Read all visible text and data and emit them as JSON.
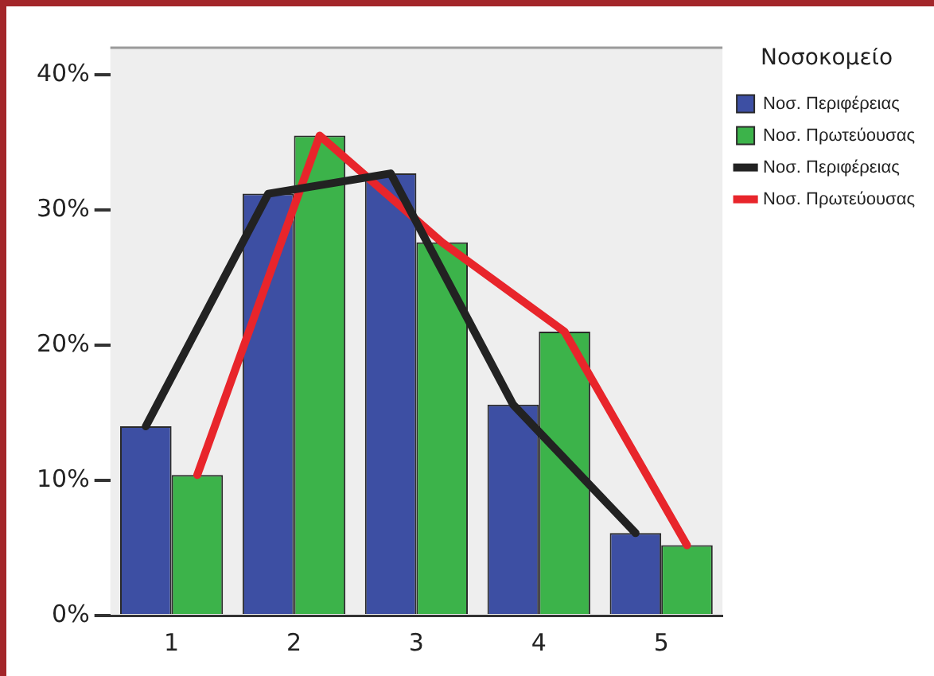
{
  "chart_data": {
    "type": "bar",
    "categories": [
      "1",
      "2",
      "3",
      "4",
      "5"
    ],
    "series": [
      {
        "name": "Νοσ. Περιφέρειας",
        "color": "#3d4fa3",
        "values": [
          14.0,
          31.2,
          32.7,
          15.6,
          6.1
        ]
      },
      {
        "name": "Νοσ. Πρωτεύουσας",
        "color": "#3cb34a",
        "values": [
          10.4,
          35.5,
          27.6,
          21.0,
          5.2
        ]
      },
      {
        "name": "Νοσ. Περιφέρειας",
        "type": "line",
        "color": "#222222",
        "values": [
          14.0,
          31.2,
          32.7,
          15.6,
          6.1
        ]
      },
      {
        "name": "Νοσ. Πρωτεύουσας",
        "type": "line",
        "color": "#e8252b",
        "values": [
          10.4,
          35.5,
          27.6,
          21.0,
          5.2
        ]
      }
    ],
    "legend_title": "Νοσοκομείο",
    "legend": "right",
    "grid": false,
    "marker": "none",
    "line_style": "solid",
    "ylim": [
      0,
      42
    ],
    "yticks": [
      {
        "value": 0,
        "label": "0%"
      },
      {
        "value": 10,
        "label": "10%"
      },
      {
        "value": 20,
        "label": "20%"
      },
      {
        "value": 30,
        "label": "30%"
      },
      {
        "value": 40,
        "label": "40%"
      }
    ]
  }
}
